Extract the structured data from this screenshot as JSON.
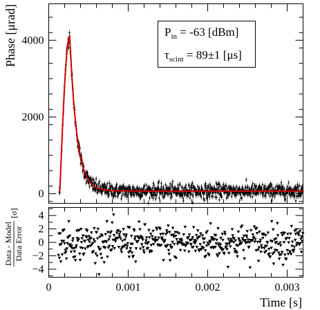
{
  "chart_data": {
    "type": "scatter",
    "top_panel": {
      "ylabel": "Phase [μrad]",
      "xlim": [
        0,
        0.0032
      ],
      "ylim": [
        -250,
        4950
      ],
      "yticks": [
        0,
        2000,
        4000
      ],
      "ytick_labels": [
        "0",
        "2000",
        "4000"
      ],
      "legend_position": "top-right",
      "annotations": [
        {
          "main": "P",
          "sub": "in",
          "rest": " = -63 [dBm]"
        },
        {
          "main": "τ",
          "sub": "scint",
          "rest": " = 89±1 [μs]"
        }
      ],
      "series": [
        {
          "kind": "points-with-error-bars",
          "color": "#000000",
          "note": "Dense data, regenerated from the fit model plus noise",
          "n_points": 1000,
          "noise_sigma": 90,
          "error_bar_halfwidth": 70
        },
        {
          "kind": "fit-line",
          "color": "#d40000",
          "model": "rise then exponential decay",
          "baseline": 70,
          "peak_value": 4100,
          "peak_x": 0.000265,
          "onset_x": 0.00014,
          "decay_tau_s": 8.9e-05
        }
      ]
    },
    "bottom_panel": {
      "ylabel_numerator": "Data - Model",
      "ylabel_denominator": "Data Error",
      "ylabel_unit": "[σ]",
      "ylim": [
        -5.2,
        5.2
      ],
      "yticks": [
        -4,
        -2,
        0,
        2,
        4
      ],
      "ytick_labels": [
        "−4",
        "−2",
        "0",
        "2",
        "4"
      ],
      "marker": "downward triangle",
      "marker_color": "#000000",
      "residual_sigma": 1.3,
      "n_points": 520
    },
    "xlabel": "Time [s]",
    "xticks": [
      0,
      0.001,
      0.002,
      0.003
    ],
    "xtick_labels": [
      "0",
      "0.001",
      "0.002",
      "0.003"
    ],
    "grid": false
  }
}
